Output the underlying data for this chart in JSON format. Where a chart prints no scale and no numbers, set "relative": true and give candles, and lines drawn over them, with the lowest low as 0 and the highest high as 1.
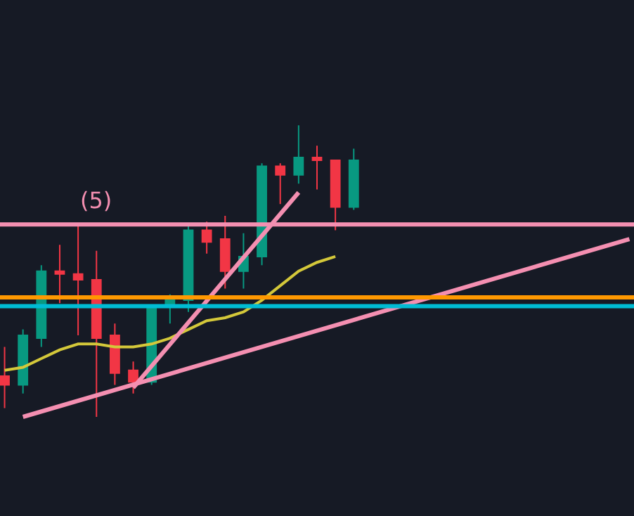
{
  "chart_data": {
    "type": "candlestick",
    "relative": true,
    "categories": [
      null,
      null,
      null,
      null,
      null,
      null,
      null,
      null,
      null,
      null,
      null,
      null,
      null,
      null,
      null,
      null,
      null,
      null,
      null,
      null,
      null,
      null,
      null,
      null,
      null,
      null,
      null,
      null,
      null,
      null,
      null,
      null,
      null,
      null,
      null
    ],
    "ohlc": [
      [
        0.14,
        0.24,
        0.03,
        0.11
      ],
      [
        0.11,
        0.3,
        0.08,
        0.28
      ],
      [
        0.27,
        0.52,
        0.24,
        0.5
      ],
      [
        0.5,
        0.59,
        0.39,
        0.49
      ],
      [
        0.49,
        0.66,
        0.28,
        0.47
      ],
      [
        0.47,
        0.57,
        0,
        0.27
      ],
      [
        0.28,
        0.32,
        0.11,
        0.15
      ],
      [
        0.16,
        0.19,
        0.08,
        0.12
      ],
      [
        0.12,
        0.38,
        0.11,
        0.38
      ],
      [
        0.38,
        0.42,
        0.32,
        0.4
      ],
      [
        0.4,
        0.66,
        0.36,
        0.64
      ],
      [
        0.64,
        0.67,
        0.56,
        0.6
      ],
      [
        0.61,
        0.69,
        0.44,
        0.5
      ],
      [
        0.5,
        0.63,
        0.44,
        0.55
      ],
      [
        0.55,
        0.87,
        0.52,
        0.86
      ],
      [
        0.86,
        0.87,
        0.73,
        0.83
      ],
      [
        0.83,
        1,
        0.8,
        0.89
      ],
      [
        0.89,
        0.93,
        0.78,
        0.88
      ],
      [
        0.88,
        0.88,
        0.64,
        0.72
      ],
      [
        0.72,
        0.92,
        0.71,
        0.88
      ],
      null,
      null,
      null,
      null,
      null,
      null,
      null,
      null,
      null,
      null,
      null,
      null,
      null,
      null,
      null
    ],
    "colors": [
      "#f23645",
      "#089981",
      "#089981",
      "#f23645",
      "#f23645",
      "#f23645",
      "#f23645",
      "#f23645",
      "#089981",
      "#089981",
      "#089981",
      "#f23645",
      "#f23645",
      "#089981",
      "#089981",
      "#f23645",
      "#089981",
      "#f23645",
      "#f23645",
      "#089981",
      null,
      null,
      null,
      null,
      null,
      null,
      null,
      null,
      null,
      null,
      null,
      null,
      null,
      null,
      null
    ],
    "series": [
      {
        "type": "line",
        "color": "#d4c83a",
        "values": [
          0.16,
          0.17,
          0.2,
          0.23,
          0.25,
          0.25,
          0.24,
          0.24,
          0.25,
          0.27,
          0.3,
          0.33,
          0.34,
          0.36,
          0.4,
          0.45,
          0.5,
          0.53,
          0.55,
          null,
          null,
          null,
          null,
          null,
          null,
          null,
          null,
          null,
          null,
          null,
          null,
          null,
          null,
          null,
          null
        ]
      },
      {
        "type": "line",
        "color": "#f48fb1",
        "values": [
          null,
          0.0,
          null,
          null,
          null,
          null,
          null,
          null,
          null,
          null,
          null,
          null,
          null,
          null,
          null,
          null,
          null,
          null,
          null,
          null,
          null,
          null,
          null,
          null,
          null,
          null,
          null,
          null,
          null,
          null,
          null,
          null,
          null,
          null,
          0.61
        ]
      },
      {
        "type": "line",
        "color": "#f48fb1",
        "values": [
          null,
          null,
          null,
          null,
          null,
          null,
          null,
          0.1,
          null,
          null,
          null,
          null,
          null,
          null,
          null,
          null,
          0.77,
          null,
          null,
          null,
          null,
          null,
          null,
          null,
          null,
          null,
          null,
          null,
          null,
          null,
          null,
          null,
          null,
          null,
          null
        ]
      }
    ],
    "ref_lines": [
      {
        "axis": "y",
        "value": 0.66,
        "color": "#f48fb1"
      },
      {
        "axis": "y",
        "value": 0.41,
        "color": "#ff9800"
      },
      {
        "axis": "y",
        "value": 0.38,
        "color": "#00bcd4"
      }
    ],
    "annotations": [
      "(5)"
    ]
  }
}
